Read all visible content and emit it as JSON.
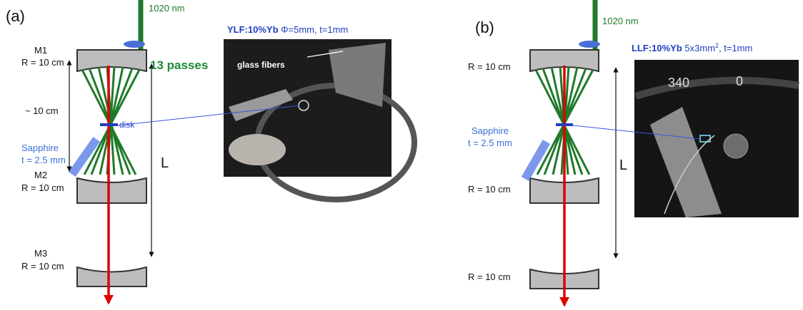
{
  "panel_a": {
    "label": "(a)",
    "wavelength": "1020 nm",
    "crystal": "YLF:10%Yb",
    "crystal_spec": "Φ=5mm, t=1mm",
    "m1": "M1",
    "m1_radius": "R = 10 cm",
    "passes": "13 passes",
    "fibers": "glass fibers",
    "spacing": "~ 10 cm",
    "disk": "disk",
    "sapphire": "Sapphire",
    "sapphire_t": "t = 2.5 mm",
    "m2": "M2",
    "m2_radius": "R = 10 cm",
    "length": "L",
    "m3": "M3",
    "m3_radius": "R = 10 cm"
  },
  "panel_b": {
    "label": "(b)",
    "wavelength": "1020 nm",
    "crystal": "LLF:10%Yb",
    "crystal_spec": "5x3mm",
    "crystal_spec_sup": "2",
    "crystal_spec_rest": ", t=1mm",
    "m1_radius": "R = 10 cm",
    "sapphire": "Sapphire",
    "sapphire_t": "t = 2.5 mm",
    "m2_radius": "R = 10 cm",
    "length": "L",
    "m3_radius": "R = 10 cm",
    "dial_340": "340",
    "dial_0": "0"
  }
}
